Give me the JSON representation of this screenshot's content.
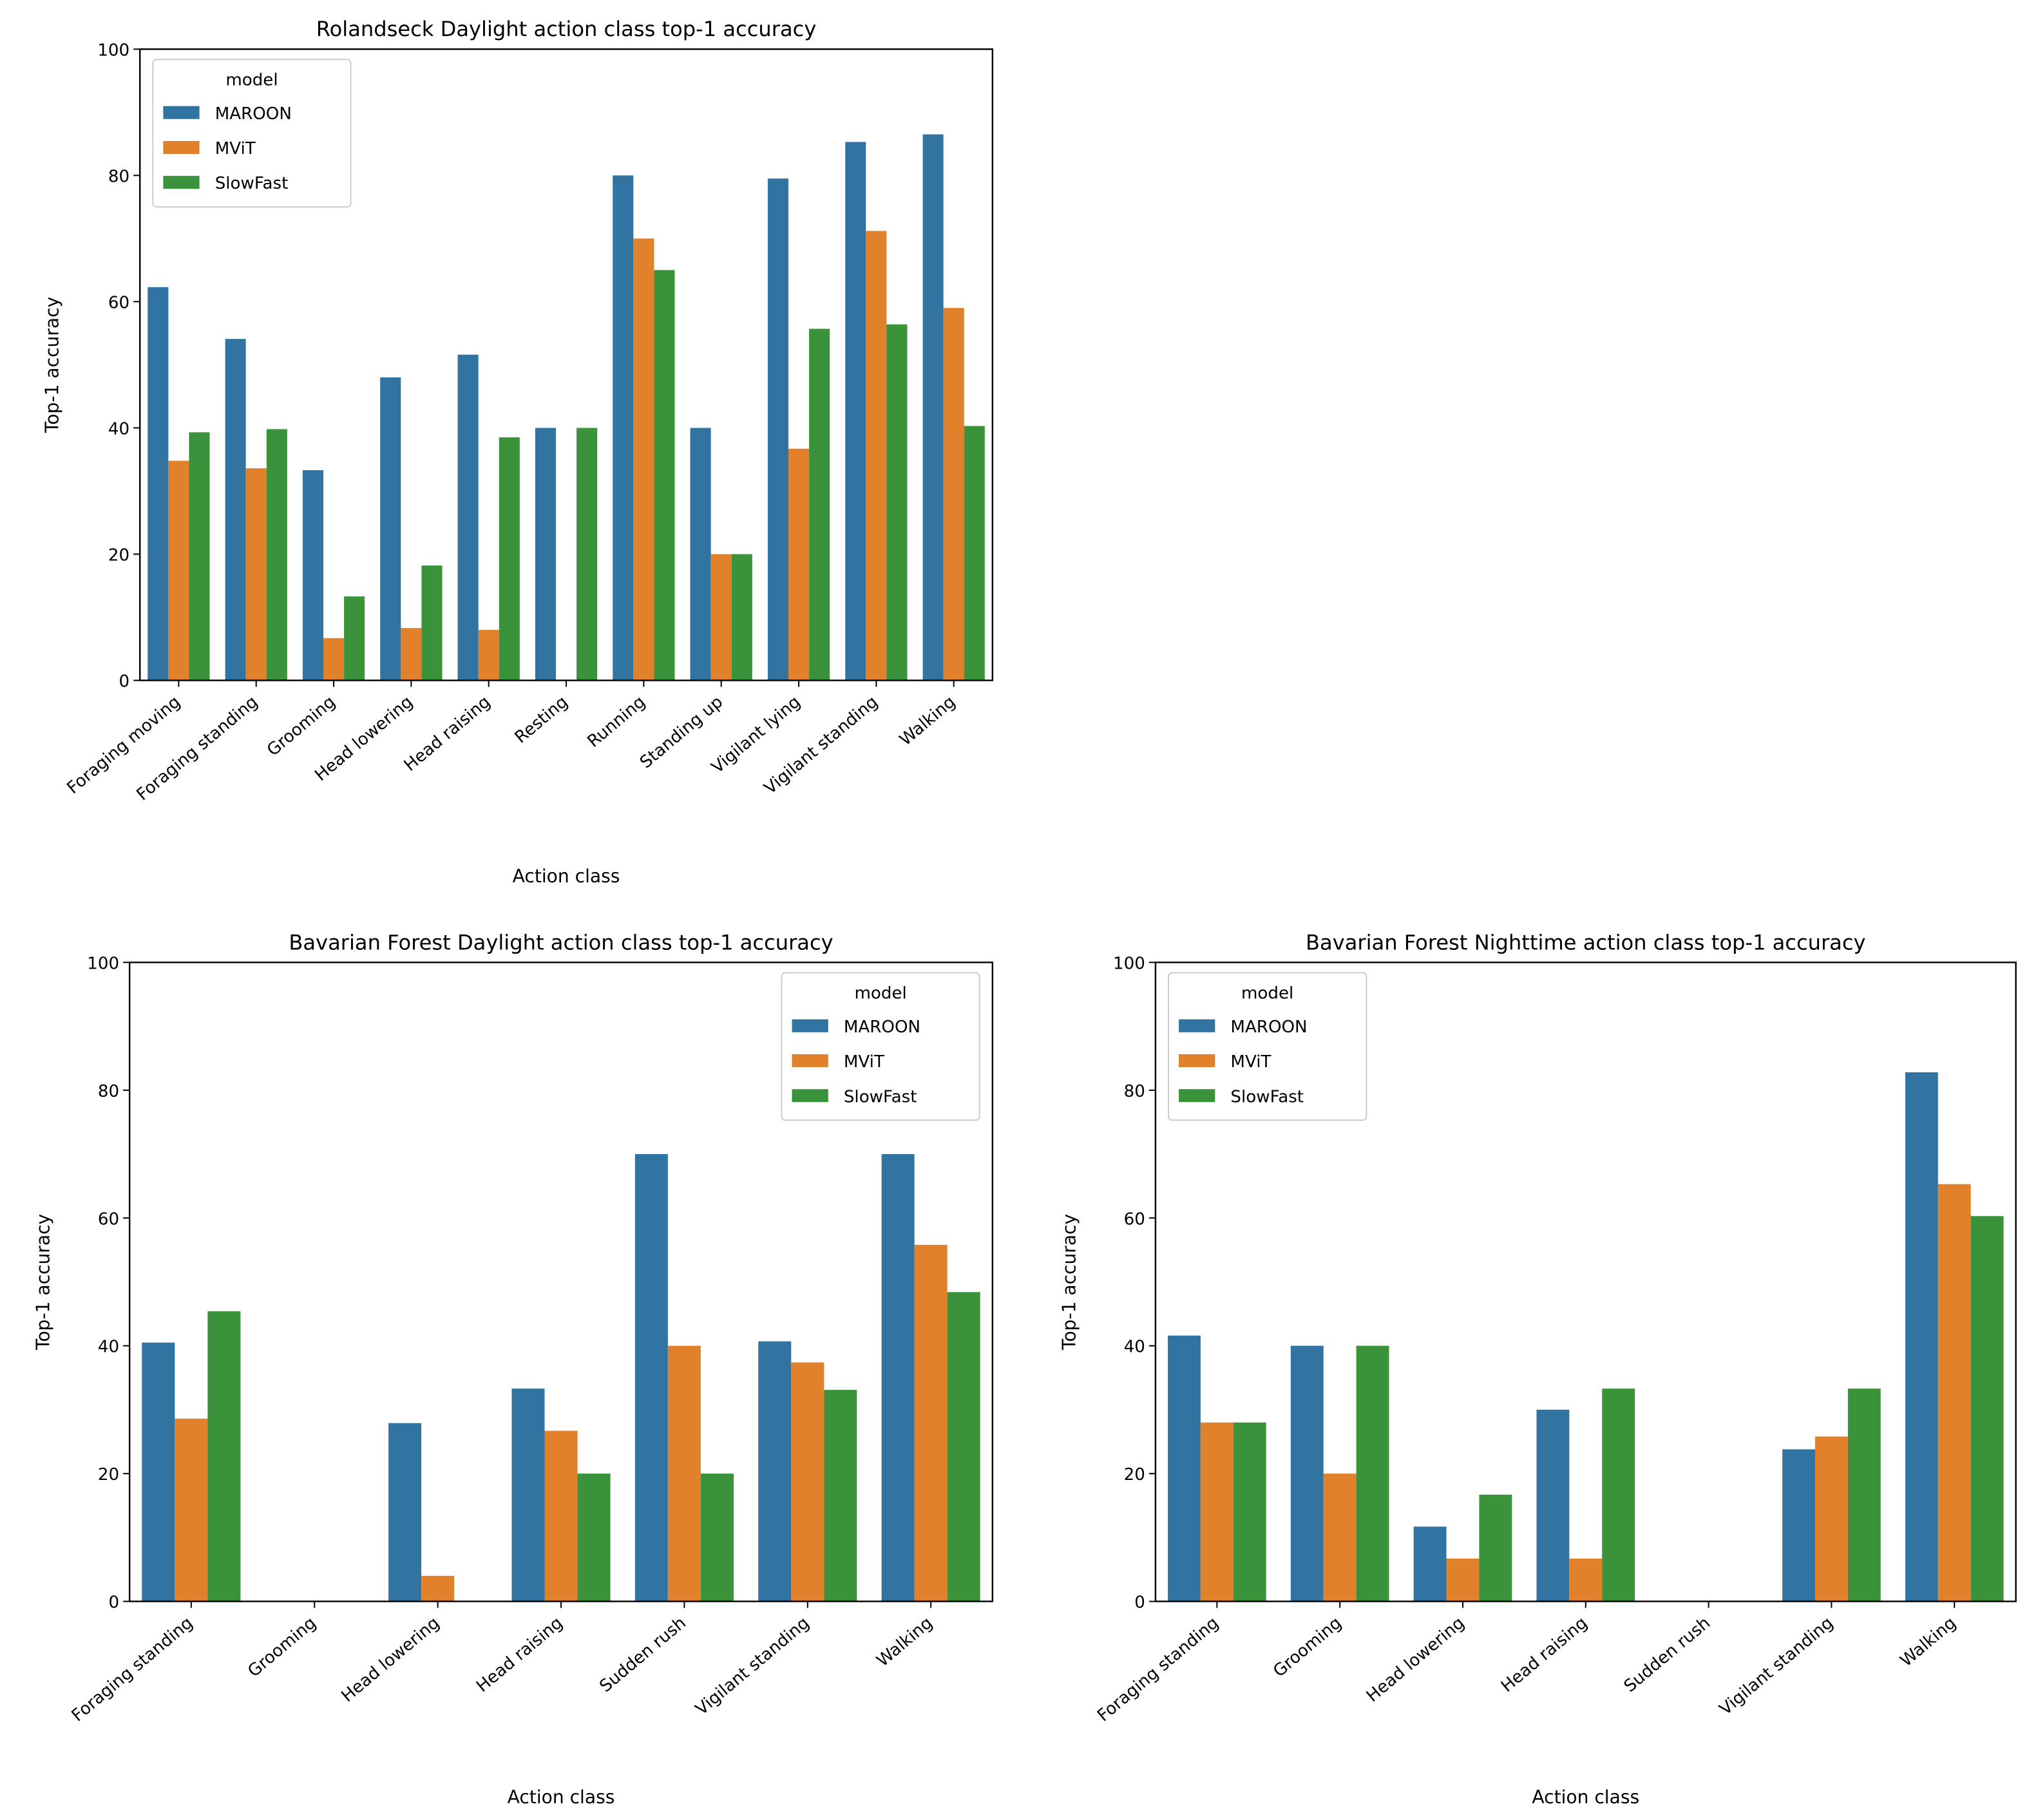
{
  "colors": {
    "MAROON": "#3274a1",
    "MViT": "#e1812c",
    "SlowFast": "#3a923a"
  },
  "chart_data": [
    {
      "type": "bar",
      "title": "Rolandseck Daylight action class top-1 accuracy",
      "xlabel": "Action class",
      "ylabel": "Top-1 accuracy",
      "ylim": [
        0,
        100
      ],
      "yticks": [
        0,
        20,
        40,
        60,
        80,
        100
      ],
      "legend_title": "model",
      "legend_position": "top-left",
      "categories": [
        "Foraging moving",
        "Foraging standing",
        "Grooming",
        "Head lowering",
        "Head raising",
        "Resting",
        "Running",
        "Standing up",
        "Vigilant lying",
        "Vigilant standing",
        "Walking"
      ],
      "series": [
        {
          "name": "MAROON",
          "values": [
            62.3,
            54.1,
            33.3,
            48.0,
            51.6,
            40.0,
            80.0,
            40.0,
            79.5,
            85.3,
            86.5
          ]
        },
        {
          "name": "MViT",
          "values": [
            34.8,
            33.6,
            6.7,
            8.3,
            8.0,
            0,
            70.0,
            20.0,
            36.7,
            71.2,
            59.0
          ]
        },
        {
          "name": "SlowFast",
          "values": [
            39.3,
            39.8,
            13.3,
            18.2,
            38.5,
            40.0,
            65.0,
            20.0,
            55.7,
            56.4,
            40.3
          ]
        }
      ]
    },
    {
      "type": "bar",
      "title": "Bavarian Forest Daylight action class top-1 accuracy",
      "xlabel": "Action class",
      "ylabel": "Top-1 accuracy",
      "ylim": [
        0,
        100
      ],
      "yticks": [
        0,
        20,
        40,
        60,
        80,
        100
      ],
      "legend_title": "model",
      "legend_position": "top-right",
      "categories": [
        "Foraging standing",
        "Grooming",
        "Head lowering",
        "Head raising",
        "Sudden rush",
        "Vigilant standing",
        "Walking"
      ],
      "series": [
        {
          "name": "MAROON",
          "values": [
            40.5,
            0,
            27.9,
            33.3,
            70.0,
            40.7,
            70.0
          ]
        },
        {
          "name": "MViT",
          "values": [
            28.6,
            0,
            4.0,
            26.7,
            40.0,
            37.4,
            55.8
          ]
        },
        {
          "name": "SlowFast",
          "values": [
            45.4,
            0,
            0,
            20.0,
            20.0,
            33.1,
            48.4
          ]
        }
      ]
    },
    {
      "type": "bar",
      "title": "Bavarian Forest Nighttime action class top-1 accuracy",
      "xlabel": "Action class",
      "ylabel": "Top-1 accuracy",
      "ylim": [
        0,
        100
      ],
      "yticks": [
        0,
        20,
        40,
        60,
        80,
        100
      ],
      "legend_title": "model",
      "legend_position": "top-left",
      "categories": [
        "Foraging standing",
        "Grooming",
        "Head lowering",
        "Head raising",
        "Sudden rush",
        "Vigilant standing",
        "Walking"
      ],
      "series": [
        {
          "name": "MAROON",
          "values": [
            41.6,
            40.0,
            11.7,
            30.0,
            0,
            23.8,
            82.8
          ]
        },
        {
          "name": "MViT",
          "values": [
            28.0,
            20.0,
            6.7,
            6.7,
            0,
            25.8,
            65.3
          ]
        },
        {
          "name": "SlowFast",
          "values": [
            28.0,
            40.0,
            16.7,
            33.3,
            0,
            33.3,
            60.3
          ]
        }
      ]
    }
  ]
}
